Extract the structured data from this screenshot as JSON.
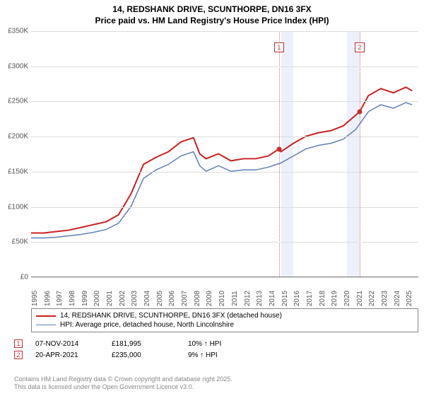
{
  "title": {
    "line1": "14, REDSHANK DRIVE, SCUNTHORPE, DN16 3FX",
    "line2": "Price paid vs. HM Land Registry's House Price Index (HPI)",
    "fontsize": 12
  },
  "chart": {
    "type": "line",
    "x_range": [
      1995,
      2026
    ],
    "y_range": [
      0,
      350000
    ],
    "y_ticks": [
      0,
      50000,
      100000,
      150000,
      200000,
      250000,
      300000,
      350000
    ],
    "y_tick_labels": [
      "£0",
      "£50K",
      "£100K",
      "£150K",
      "£200K",
      "£250K",
      "£300K",
      "£350K"
    ],
    "x_ticks": [
      1995,
      1996,
      1997,
      1998,
      1999,
      2000,
      2001,
      2002,
      2003,
      2004,
      2005,
      2006,
      2007,
      2008,
      2009,
      2010,
      2011,
      2012,
      2013,
      2014,
      2015,
      2016,
      2017,
      2018,
      2019,
      2020,
      2021,
      2022,
      2023,
      2024,
      2025
    ],
    "grid_color": "#dddddd",
    "background_color": "#ffffff",
    "axis_fontsize": 10,
    "series": [
      {
        "name": "price_paid",
        "label": "14, REDSHANK DRIVE, SCUNTHORPE, DN16 3FX (detached house)",
        "color": "#cc2020",
        "width": 2,
        "points": [
          [
            1995,
            62000
          ],
          [
            1996,
            62000
          ],
          [
            1997,
            64000
          ],
          [
            1998,
            66000
          ],
          [
            1999,
            70000
          ],
          [
            2000,
            74000
          ],
          [
            2001,
            78000
          ],
          [
            2002,
            88000
          ],
          [
            2003,
            118000
          ],
          [
            2004,
            160000
          ],
          [
            2005,
            170000
          ],
          [
            2006,
            178000
          ],
          [
            2007,
            192000
          ],
          [
            2008,
            198000
          ],
          [
            2008.5,
            175000
          ],
          [
            2009,
            168000
          ],
          [
            2010,
            175000
          ],
          [
            2011,
            165000
          ],
          [
            2012,
            168000
          ],
          [
            2013,
            168000
          ],
          [
            2014,
            172000
          ],
          [
            2014.85,
            181995
          ],
          [
            2015,
            178000
          ],
          [
            2016,
            190000
          ],
          [
            2017,
            200000
          ],
          [
            2018,
            205000
          ],
          [
            2019,
            208000
          ],
          [
            2020,
            215000
          ],
          [
            2021.3,
            235000
          ],
          [
            2022,
            258000
          ],
          [
            2023,
            268000
          ],
          [
            2024,
            262000
          ],
          [
            2025,
            270000
          ],
          [
            2025.5,
            265000
          ]
        ]
      },
      {
        "name": "hpi",
        "label": "HPI: Average price, detached house, North Lincolnshire",
        "color": "#6080b8",
        "width": 1.5,
        "points": [
          [
            1995,
            55000
          ],
          [
            1996,
            55000
          ],
          [
            1997,
            56000
          ],
          [
            1998,
            58000
          ],
          [
            1999,
            60000
          ],
          [
            2000,
            63000
          ],
          [
            2001,
            67000
          ],
          [
            2002,
            76000
          ],
          [
            2003,
            100000
          ],
          [
            2004,
            140000
          ],
          [
            2005,
            152000
          ],
          [
            2006,
            160000
          ],
          [
            2007,
            172000
          ],
          [
            2008,
            178000
          ],
          [
            2008.5,
            158000
          ],
          [
            2009,
            150000
          ],
          [
            2010,
            158000
          ],
          [
            2011,
            150000
          ],
          [
            2012,
            152000
          ],
          [
            2013,
            152000
          ],
          [
            2014,
            156000
          ],
          [
            2015,
            162000
          ],
          [
            2016,
            172000
          ],
          [
            2017,
            182000
          ],
          [
            2018,
            187000
          ],
          [
            2019,
            190000
          ],
          [
            2020,
            196000
          ],
          [
            2021,
            210000
          ],
          [
            2022,
            235000
          ],
          [
            2023,
            245000
          ],
          [
            2024,
            240000
          ],
          [
            2025,
            248000
          ],
          [
            2025.5,
            245000
          ]
        ]
      }
    ],
    "shaded_bands": [
      {
        "x_start": 2015,
        "x_end": 2016,
        "color": "rgba(180,200,230,0.25)"
      },
      {
        "x_start": 2020.3,
        "x_end": 2021.3,
        "color": "rgba(180,200,230,0.25)"
      }
    ],
    "markers": [
      {
        "id": "1",
        "x": 2014.85,
        "y": 181995,
        "line_color": "#c03030"
      },
      {
        "id": "2",
        "x": 2021.3,
        "y": 235000,
        "line_color": "#c03030"
      }
    ]
  },
  "legend": {
    "items": [
      {
        "color": "#cc2020",
        "width": 2,
        "label": "14, REDSHANK DRIVE, SCUNTHORPE, DN16 3FX (detached house)"
      },
      {
        "color": "#6080b8",
        "width": 1.5,
        "label": "HPI: Average price, detached house, North Lincolnshire"
      }
    ],
    "fontsize": 10
  },
  "transactions": [
    {
      "id": "1",
      "date": "07-NOV-2014",
      "price": "£181,995",
      "delta": "10% ↑ HPI"
    },
    {
      "id": "2",
      "date": "20-APR-2021",
      "price": "£235,000",
      "delta": "9% ↑ HPI"
    }
  ],
  "footer": {
    "line1": "Contains HM Land Registry data © Crown copyright and database right 2025.",
    "line2": "This data is licensed under the Open Government Licence v3.0.",
    "color": "#888888",
    "fontsize": 9
  }
}
